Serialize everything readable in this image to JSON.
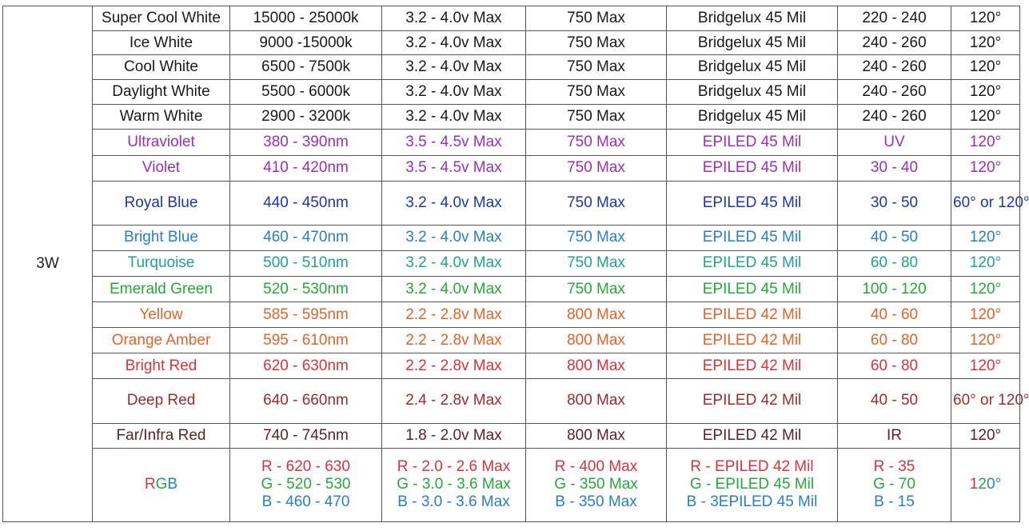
{
  "watt": "3W",
  "colors": {
    "black": "#1a1a1a",
    "purple": "#9b30b8",
    "navy": "#1f35b0",
    "sky": "#2a7fc4",
    "teal": "#1fa38a",
    "green": "#26a83a",
    "orange": "#e2642b",
    "red": "#d6343c",
    "deepred": "#9e2a31",
    "maroon": "#5a2528"
  },
  "rows": [
    {
      "name": "Super Cool White",
      "spectrum": "15000 - 25000k",
      "voltage": "3.2 - 4.0v Max",
      "current": "750 Max",
      "chip": "Bridgelux 45 Mil",
      "lumens": "220 - 240",
      "angle": "120°"
    },
    {
      "name": "Ice White",
      "spectrum": "9000 -15000k",
      "voltage": "3.2 - 4.0v Max",
      "current": "750 Max",
      "chip": "Bridgelux 45 Mil",
      "lumens": "240 - 260",
      "angle": "120°"
    },
    {
      "name": "Cool White",
      "spectrum": "6500 - 7500k",
      "voltage": "3.2 - 4.0v Max",
      "current": "750 Max",
      "chip": "Bridgelux 45 Mil",
      "lumens": "240 - 260",
      "angle": "120°"
    },
    {
      "name": "Daylight White",
      "spectrum": "5500 - 6000k",
      "voltage": "3.2 - 4.0v Max",
      "current": "750 Max",
      "chip": "Bridgelux 45 Mil",
      "lumens": "240 - 260",
      "angle": "120°"
    },
    {
      "name": "Warm White",
      "spectrum": "2900 - 3200k",
      "voltage": "3.2 - 4.0v Max",
      "current": "750 Max",
      "chip": "Bridgelux 45 Mil",
      "lumens": "240 - 260",
      "angle": "120°"
    },
    {
      "name": "Ultraviolet",
      "spectrum": "380 - 390nm",
      "voltage": "3.5 - 4.5v Max",
      "current": "750 Max",
      "chip": "EPILED 45 Mil",
      "lumens": "UV",
      "angle": "120°"
    },
    {
      "name": "Violet",
      "spectrum": "410 - 420nm",
      "voltage": "3.5 - 4.5v Max",
      "current": "750 Max",
      "chip": "EPILED 45 Mil",
      "lumens": "30 - 40",
      "angle": "120°"
    },
    {
      "name": "Royal Blue",
      "spectrum": "440 - 450nm",
      "voltage": "3.2 - 4.0v Max",
      "current": "750 Max",
      "chip": "EPILED 45 Mil",
      "lumens": "30 - 50",
      "angle": "60°  or 120°"
    },
    {
      "name": "Bright Blue",
      "spectrum": "460 - 470nm",
      "voltage": "3.2 - 4.0v Max",
      "current": "750 Max",
      "chip": "EPILED 45 Mil",
      "lumens": "40 - 50",
      "angle": "120°"
    },
    {
      "name": "Turquoise",
      "spectrum": "500 - 510nm",
      "voltage": "3.2 - 4.0v Max",
      "current": "750 Max",
      "chip": "EPILED 45 Mil",
      "lumens": "60 - 80",
      "angle": "120°"
    },
    {
      "name": "Emerald Green",
      "spectrum": "520 - 530nm",
      "voltage": "3.2 - 4.0v Max",
      "current": "750 Max",
      "chip": "EPILED 45 Mil",
      "lumens": "100 - 120",
      "angle": "120°"
    },
    {
      "name": "Yellow",
      "spectrum": "585 - 595nm",
      "voltage": "2.2 - 2.8v Max",
      "current": "800 Max",
      "chip": "EPILED 42 Mil",
      "lumens": "40 - 60",
      "angle": "120°"
    },
    {
      "name": "Orange Amber",
      "spectrum": "595 - 610nm",
      "voltage": "2.2 - 2.8v Max",
      "current": "800 Max",
      "chip": "EPILED 42 Mil",
      "lumens": "60 - 80",
      "angle": "120°"
    },
    {
      "name": "Bright Red",
      "spectrum": "620 - 630nm",
      "voltage": "2.2 - 2.8v Max",
      "current": "800 Max",
      "chip": "EPILED 42 Mil",
      "lumens": "60 - 80",
      "angle": "120°"
    },
    {
      "name": "Deep Red",
      "spectrum": "640 - 660nm",
      "voltage": "2.4 - 2.8v Max",
      "current": "800 Max",
      "chip": "EPILED 42 Mil",
      "lumens": "40 - 50",
      "angle": "60°  or 120°"
    },
    {
      "name": "Far/Infra Red",
      "spectrum": "740 - 745nm",
      "voltage": "1.8 - 2.0v Max",
      "current": "800 Max",
      "chip": "EPILED 42 Mil",
      "lumens": "IR",
      "angle": "120°"
    }
  ],
  "rgb": {
    "name": "RGB",
    "spectrum": [
      "R - 620 - 630",
      "G - 520 - 530",
      "B - 460 - 470"
    ],
    "voltage": [
      "R - 2.0 - 2.6 Max",
      "G - 3.0 - 3.6 Max",
      "B - 3.0 - 3.6 Max"
    ],
    "current": [
      "R - 400 Max",
      "G - 350 Max",
      "B - 350 Max"
    ],
    "chip": [
      "R - EPILED 42 Mil",
      "G - EPILED 45 Mil",
      "B - 3EPILED 45 Mil"
    ],
    "lumens": [
      "R - 35",
      "G - 70",
      "B - 15"
    ],
    "angle": "120°"
  }
}
